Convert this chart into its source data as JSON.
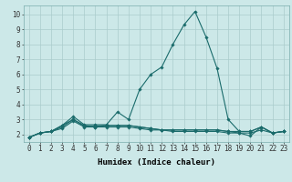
{
  "xlabel": "Humidex (Indice chaleur)",
  "bg_color": "#cce8e8",
  "line_color": "#1a6b6b",
  "grid_color": "#aacccc",
  "xlim": [
    -0.5,
    23.5
  ],
  "ylim": [
    1.5,
    10.6
  ],
  "xticks": [
    0,
    1,
    2,
    3,
    4,
    5,
    6,
    7,
    8,
    9,
    10,
    11,
    12,
    13,
    14,
    15,
    16,
    17,
    18,
    19,
    20,
    21,
    22,
    23
  ],
  "yticks": [
    2,
    3,
    4,
    5,
    6,
    7,
    8,
    9,
    10
  ],
  "lines": [
    [
      1.8,
      2.1,
      2.2,
      2.6,
      3.2,
      2.65,
      2.65,
      2.65,
      3.5,
      3.0,
      5.0,
      6.0,
      6.5,
      8.0,
      9.3,
      10.2,
      8.5,
      6.4,
      3.0,
      2.2,
      2.2,
      2.5,
      2.1,
      2.2
    ],
    [
      1.8,
      2.1,
      2.2,
      2.6,
      3.0,
      2.55,
      2.55,
      2.6,
      2.6,
      2.6,
      2.5,
      2.4,
      2.3,
      2.3,
      2.3,
      2.3,
      2.3,
      2.3,
      2.2,
      2.2,
      2.2,
      2.5,
      2.1,
      2.2
    ],
    [
      1.8,
      2.1,
      2.2,
      2.5,
      3.0,
      2.6,
      2.5,
      2.6,
      2.6,
      2.6,
      2.5,
      2.4,
      2.3,
      2.3,
      2.3,
      2.3,
      2.3,
      2.3,
      2.2,
      2.1,
      1.9,
      2.5,
      2.1,
      2.2
    ],
    [
      1.8,
      2.1,
      2.2,
      2.4,
      2.9,
      2.5,
      2.5,
      2.5,
      2.5,
      2.5,
      2.4,
      2.3,
      2.3,
      2.2,
      2.2,
      2.2,
      2.2,
      2.2,
      2.1,
      2.1,
      2.1,
      2.3,
      2.1,
      2.2
    ]
  ],
  "tick_fontsize": 5.5,
  "xlabel_fontsize": 6.5,
  "marker": "D",
  "markersize": 1.8,
  "linewidth": 0.8
}
